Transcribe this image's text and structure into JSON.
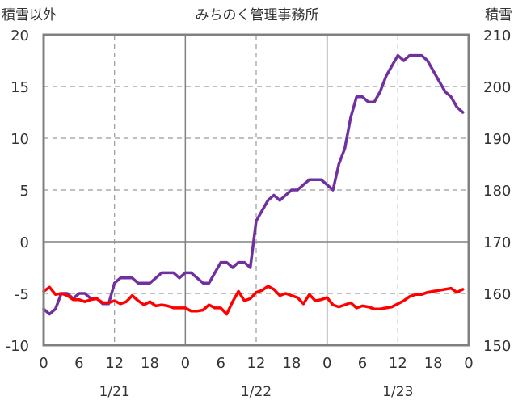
{
  "chart_data": {
    "type": "line",
    "title": "みちのく管理事務所",
    "left_axis": {
      "label": "積雪以外",
      "min": -10,
      "max": 20,
      "ticks": [
        20,
        15,
        10,
        5,
        0,
        -5,
        -10
      ]
    },
    "right_axis": {
      "label": "積雪",
      "min": 150,
      "max": 210,
      "ticks": [
        210,
        200,
        190,
        180,
        170,
        160,
        150
      ]
    },
    "x_axis": {
      "min": 0,
      "max": 72,
      "hour_labels": [
        {
          "h": 0,
          "label": "0"
        },
        {
          "h": 6,
          "label": "6"
        },
        {
          "h": 12,
          "label": "12"
        },
        {
          "h": 18,
          "label": "18"
        },
        {
          "h": 24,
          "label": "0"
        },
        {
          "h": 30,
          "label": "6"
        },
        {
          "h": 36,
          "label": "12"
        },
        {
          "h": 42,
          "label": "18"
        },
        {
          "h": 48,
          "label": "0"
        },
        {
          "h": 54,
          "label": "6"
        },
        {
          "h": 60,
          "label": "12"
        },
        {
          "h": 66,
          "label": "18"
        },
        {
          "h": 72,
          "label": "0"
        }
      ],
      "date_labels": [
        {
          "h": 12,
          "label": "1/21"
        },
        {
          "h": 36,
          "label": "1/22"
        },
        {
          "h": 60,
          "label": "1/23"
        }
      ]
    },
    "grid": {
      "solid_at_hours": [
        24,
        48
      ],
      "dashed_at_hours": [
        12,
        36,
        60
      ],
      "dashed_y": [
        15,
        10,
        5,
        -5
      ],
      "solid_y": [
        0
      ]
    },
    "series": [
      {
        "axis": "right",
        "color": "#7030a0",
        "x": [
          0,
          1,
          2,
          3,
          4,
          5,
          6,
          7,
          8,
          9,
          10,
          11,
          12,
          13,
          14,
          15,
          16,
          17,
          18,
          19,
          20,
          21,
          22,
          23,
          24,
          25,
          26,
          27,
          28,
          29,
          30,
          31,
          32,
          33,
          34,
          35,
          36,
          37,
          38,
          39,
          40,
          41,
          42,
          43,
          44,
          45,
          46,
          47,
          48,
          49,
          50,
          51,
          52,
          53,
          54,
          55,
          56,
          57,
          58,
          59,
          60,
          61,
          62,
          63,
          64,
          65,
          66,
          67,
          68,
          69,
          70,
          71
        ],
        "values": [
          157,
          156,
          157,
          160,
          160,
          159,
          160,
          160,
          159,
          159,
          158,
          158,
          162,
          163,
          163,
          163,
          162,
          162,
          162,
          163,
          164,
          164,
          164,
          163,
          164,
          164,
          163,
          162,
          162,
          164,
          166,
          166,
          165,
          166,
          166,
          165,
          174,
          176,
          178,
          179,
          178,
          179,
          180,
          180,
          181,
          182,
          182,
          182,
          181,
          180,
          185,
          188,
          194,
          198,
          198,
          197,
          197,
          199,
          202,
          204,
          206,
          205,
          206,
          206,
          206,
          205,
          203,
          201,
          199,
          198,
          196,
          195
        ]
      },
      {
        "axis": "left",
        "color": "#ff0000",
        "x": [
          0,
          1,
          2,
          3,
          4,
          5,
          6,
          7,
          8,
          9,
          10,
          11,
          12,
          13,
          14,
          15,
          16,
          17,
          18,
          19,
          20,
          21,
          22,
          23,
          24,
          25,
          26,
          27,
          28,
          29,
          30,
          31,
          32,
          33,
          34,
          35,
          36,
          37,
          38,
          39,
          40,
          41,
          42,
          43,
          44,
          45,
          46,
          47,
          48,
          49,
          50,
          51,
          52,
          53,
          54,
          55,
          56,
          57,
          58,
          59,
          60,
          61,
          62,
          63,
          64,
          65,
          66,
          67,
          68,
          69,
          70,
          71
        ],
        "values": [
          -4.8,
          -4.4,
          -5.1,
          -5.0,
          -5.2,
          -5.6,
          -5.6,
          -5.8,
          -5.6,
          -5.5,
          -5.9,
          -5.9,
          -5.7,
          -6.0,
          -5.8,
          -5.2,
          -5.7,
          -6.1,
          -5.8,
          -6.2,
          -6.1,
          -6.2,
          -6.4,
          -6.4,
          -6.4,
          -6.7,
          -6.7,
          -6.6,
          -6.1,
          -6.4,
          -6.4,
          -7.0,
          -5.8,
          -4.8,
          -5.7,
          -5.5,
          -4.9,
          -4.7,
          -4.3,
          -4.6,
          -5.2,
          -5.0,
          -5.2,
          -5.4,
          -6.0,
          -5.1,
          -5.7,
          -5.6,
          -5.4,
          -6.1,
          -6.3,
          -6.1,
          -5.9,
          -6.4,
          -6.2,
          -6.3,
          -6.5,
          -6.5,
          -6.4,
          -6.3,
          -6.0,
          -5.7,
          -5.3,
          -5.1,
          -5.1,
          -4.9,
          -4.8,
          -4.7,
          -4.6,
          -4.5,
          -4.9,
          -4.6
        ]
      }
    ]
  }
}
